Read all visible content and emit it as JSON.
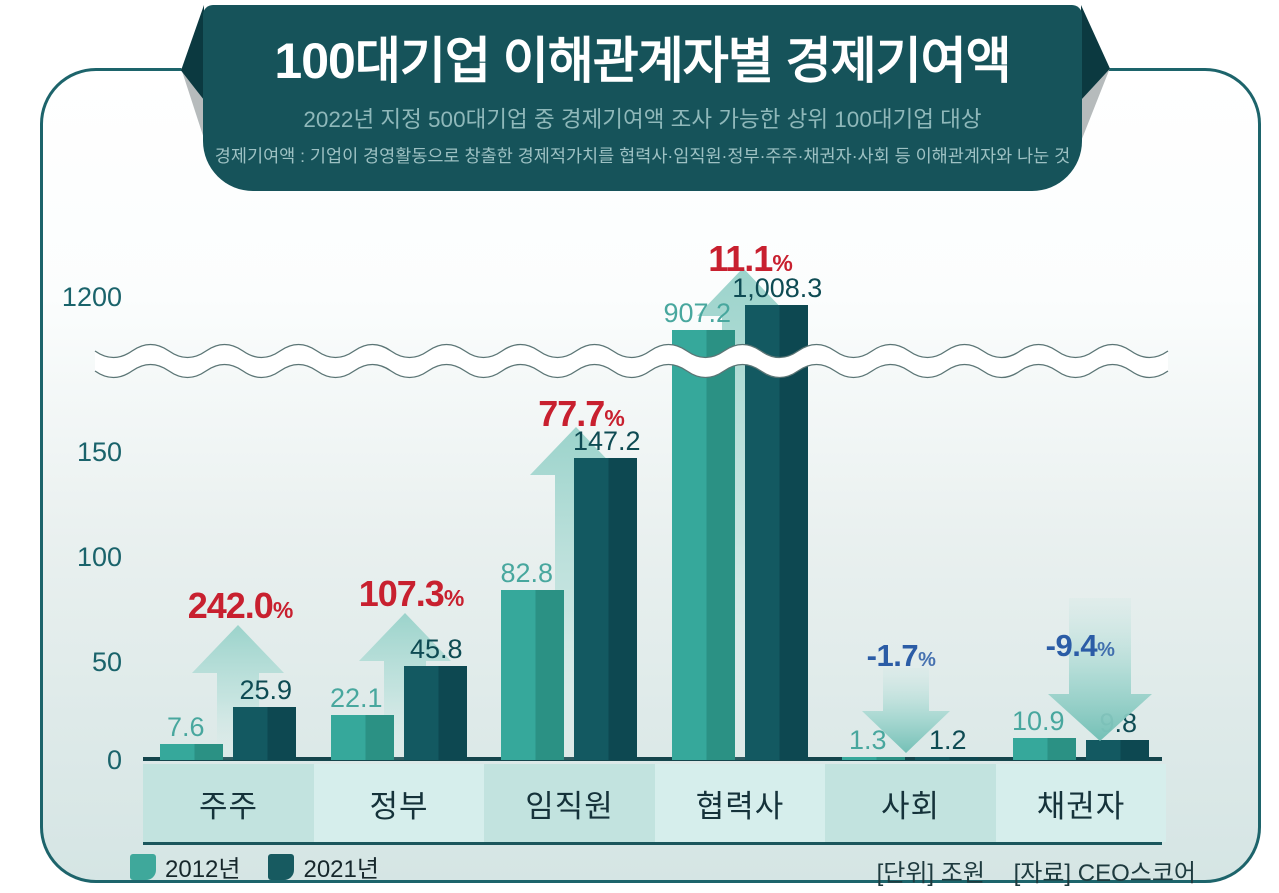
{
  "banner": {
    "title": "100대기업 이해관계자별 경제기여액",
    "subtitle": "2022년 지정 500대기업 중 경제기여액 조사 가능한 상위 100대기업 대상",
    "note": "경제기여액 : 기업이 경영활동으로 창출한 경제적가치를 협력사·임직원·정부·주주·채권자·사회 등 이해관계자와 나눈 것"
  },
  "chart_data": {
    "type": "bar",
    "title": "100대기업 이해관계자별 경제기여액",
    "unit": "조원",
    "categories": [
      "주주",
      "정부",
      "임직원",
      "협력사",
      "사회",
      "채권자"
    ],
    "series": [
      {
        "name": "2012년",
        "values": [
          7.6,
          22.1,
          82.8,
          907.2,
          1.3,
          10.9
        ],
        "labels": [
          "7.6",
          "22.1",
          "82.8",
          "907.2",
          "1.3",
          "10.9"
        ],
        "color": "#36a89b",
        "color_dark": "#2b9184",
        "label_color": "#48a79e"
      },
      {
        "name": "2021년",
        "values": [
          25.9,
          45.8,
          147.2,
          1008.3,
          1.2,
          9.8
        ],
        "labels": [
          "25.9",
          "45.8",
          "147.2",
          "1,008.3",
          "1.2",
          "9.8"
        ],
        "color": "#135961",
        "color_dark": "#0d4851",
        "label_color": "#0e4b53"
      }
    ],
    "change_percent": [
      "242.0",
      "107.3",
      "77.7",
      "11.1",
      "-1.7",
      "-9.4"
    ],
    "y_axis_ticks": [
      "1200",
      "150",
      "100",
      "50",
      "0"
    ],
    "broken_axis": true,
    "legend_position": "bottom-left"
  },
  "legend": {
    "items": [
      {
        "label": "2012년",
        "color": "#3fa89b"
      },
      {
        "label": "2021년",
        "color": "#175a60"
      }
    ]
  },
  "footer": {
    "unit_label": "[단위] 조원",
    "source_label": "[자료] CEO스코어"
  },
  "colors": {
    "increase": "#c8202f",
    "decrease": "#2b5ca6",
    "banner_bg": "#16535a",
    "band_odd": "#c2e3df",
    "band_even": "#d6eeec",
    "axis": "#14454c"
  }
}
